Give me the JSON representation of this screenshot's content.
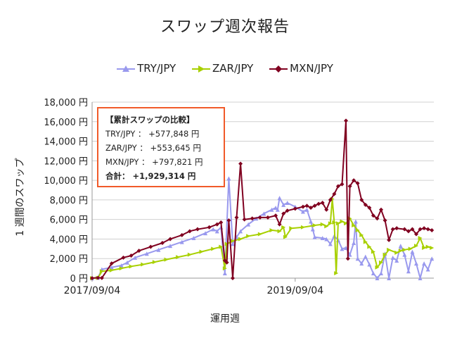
{
  "chart_data": {
    "type": "line",
    "title": "スワップ週次報告",
    "xlabel": "運用週",
    "ylabel": "1 週間のスワップ",
    "ylim": [
      0,
      18000
    ],
    "yticks": [
      "0 円",
      "2,000 円",
      "4,000 円",
      "6,000 円",
      "8,000 円",
      "10,000 円",
      "12,000 円",
      "14,000 円",
      "16,000 円",
      "18,000 円"
    ],
    "xticks": [
      {
        "label": "2017/09/04",
        "week": 0
      },
      {
        "label": "2019/09/04",
        "week": 104
      }
    ],
    "xlim": [
      0,
      175
    ],
    "grid": true,
    "legend_position": "top",
    "series": [
      {
        "name": "TRY/JPY",
        "color": "#9999ee",
        "marker": "triangle",
        "points": [
          [
            0,
            0
          ],
          [
            3,
            50
          ],
          [
            5,
            900
          ],
          [
            10,
            1100
          ],
          [
            15,
            1300
          ],
          [
            18,
            1600
          ],
          [
            22,
            2100
          ],
          [
            28,
            2500
          ],
          [
            34,
            2900
          ],
          [
            40,
            3300
          ],
          [
            46,
            3700
          ],
          [
            52,
            4100
          ],
          [
            58,
            4600
          ],
          [
            62,
            5000
          ],
          [
            64,
            4800
          ],
          [
            66,
            5200
          ],
          [
            68,
            500
          ],
          [
            70,
            10200
          ],
          [
            72,
            3500
          ],
          [
            74,
            4200
          ],
          [
            76,
            4800
          ],
          [
            80,
            5500
          ],
          [
            84,
            6100
          ],
          [
            88,
            6600
          ],
          [
            92,
            7000
          ],
          [
            94,
            7200
          ],
          [
            95,
            7000
          ],
          [
            96,
            8200
          ],
          [
            98,
            7500
          ],
          [
            100,
            7700
          ],
          [
            104,
            7300
          ],
          [
            108,
            6800
          ],
          [
            110,
            7000
          ],
          [
            112,
            5800
          ],
          [
            113,
            5000
          ],
          [
            114,
            4200
          ],
          [
            118,
            4100
          ],
          [
            120,
            4000
          ],
          [
            122,
            3500
          ],
          [
            124,
            4300
          ],
          [
            126,
            3900
          ],
          [
            128,
            3000
          ],
          [
            130,
            3100
          ],
          [
            132,
            2400
          ],
          [
            134,
            3600
          ],
          [
            135,
            5800
          ],
          [
            136,
            2000
          ],
          [
            138,
            1500
          ],
          [
            140,
            2200
          ],
          [
            142,
            1400
          ],
          [
            144,
            500
          ],
          [
            146,
            0
          ],
          [
            148,
            500
          ],
          [
            150,
            2500
          ],
          [
            152,
            0
          ],
          [
            154,
            2100
          ],
          [
            156,
            1800
          ],
          [
            158,
            3300
          ],
          [
            160,
            2400
          ],
          [
            162,
            700
          ],
          [
            164,
            2700
          ],
          [
            166,
            1500
          ],
          [
            168,
            0
          ],
          [
            170,
            1500
          ],
          [
            172,
            900
          ],
          [
            174,
            2000
          ]
        ]
      },
      {
        "name": "ZAR/JPY",
        "color": "#a8d000",
        "marker": "right-triangle",
        "points": [
          [
            0,
            0
          ],
          [
            3,
            30
          ],
          [
            5,
            700
          ],
          [
            10,
            800
          ],
          [
            15,
            1000
          ],
          [
            20,
            1200
          ],
          [
            26,
            1400
          ],
          [
            32,
            1650
          ],
          [
            38,
            1900
          ],
          [
            44,
            2150
          ],
          [
            50,
            2400
          ],
          [
            56,
            2700
          ],
          [
            62,
            3000
          ],
          [
            66,
            3200
          ],
          [
            68,
            1000
          ],
          [
            69,
            3500
          ],
          [
            72,
            3800
          ],
          [
            76,
            4000
          ],
          [
            80,
            4300
          ],
          [
            86,
            4500
          ],
          [
            92,
            4900
          ],
          [
            96,
            4800
          ],
          [
            98,
            5200
          ],
          [
            99,
            4200
          ],
          [
            102,
            5100
          ],
          [
            108,
            5200
          ],
          [
            114,
            5400
          ],
          [
            118,
            5500
          ],
          [
            120,
            5300
          ],
          [
            122,
            5600
          ],
          [
            123,
            8100
          ],
          [
            124,
            5700
          ],
          [
            125,
            500
          ],
          [
            126,
            5600
          ],
          [
            128,
            5800
          ],
          [
            130,
            5600
          ],
          [
            132,
            6100
          ],
          [
            134,
            5400
          ],
          [
            136,
            4900
          ],
          [
            138,
            4400
          ],
          [
            140,
            3700
          ],
          [
            142,
            3200
          ],
          [
            144,
            2700
          ],
          [
            146,
            1100
          ],
          [
            148,
            1600
          ],
          [
            150,
            2400
          ],
          [
            152,
            2900
          ],
          [
            156,
            2600
          ],
          [
            158,
            2800
          ],
          [
            160,
            2900
          ],
          [
            163,
            3000
          ],
          [
            166,
            3300
          ],
          [
            168,
            4100
          ],
          [
            170,
            3100
          ],
          [
            172,
            3200
          ],
          [
            174,
            3100
          ]
        ]
      },
      {
        "name": "MXN/JPY",
        "color": "#800020",
        "marker": "diamond",
        "points": [
          [
            0,
            0
          ],
          [
            3,
            40
          ],
          [
            5,
            20
          ],
          [
            10,
            1500
          ],
          [
            16,
            2100
          ],
          [
            20,
            2300
          ],
          [
            24,
            2800
          ],
          [
            30,
            3200
          ],
          [
            36,
            3600
          ],
          [
            40,
            4000
          ],
          [
            46,
            4400
          ],
          [
            50,
            4800
          ],
          [
            54,
            5000
          ],
          [
            60,
            5200
          ],
          [
            64,
            5500
          ],
          [
            66,
            5700
          ],
          [
            68,
            1800
          ],
          [
            69,
            1600
          ],
          [
            70,
            5900
          ],
          [
            72,
            0
          ],
          [
            74,
            6200
          ],
          [
            76,
            11700
          ],
          [
            78,
            6000
          ],
          [
            82,
            6100
          ],
          [
            86,
            6200
          ],
          [
            90,
            6200
          ],
          [
            94,
            6400
          ],
          [
            96,
            5500
          ],
          [
            98,
            6600
          ],
          [
            100,
            6900
          ],
          [
            104,
            7100
          ],
          [
            108,
            7300
          ],
          [
            110,
            7400
          ],
          [
            112,
            7200
          ],
          [
            114,
            7400
          ],
          [
            116,
            7600
          ],
          [
            118,
            7700
          ],
          [
            120,
            7000
          ],
          [
            122,
            8000
          ],
          [
            124,
            8600
          ],
          [
            126,
            9400
          ],
          [
            128,
            9600
          ],
          [
            130,
            16100
          ],
          [
            131,
            2000
          ],
          [
            132,
            9400
          ],
          [
            134,
            10000
          ],
          [
            136,
            9700
          ],
          [
            138,
            8000
          ],
          [
            140,
            7500
          ],
          [
            142,
            7200
          ],
          [
            144,
            6400
          ],
          [
            146,
            6100
          ],
          [
            148,
            7000
          ],
          [
            150,
            5900
          ],
          [
            152,
            3900
          ],
          [
            154,
            5000
          ],
          [
            156,
            5100
          ],
          [
            160,
            5000
          ],
          [
            162,
            4800
          ],
          [
            164,
            5000
          ],
          [
            166,
            4500
          ],
          [
            168,
            5000
          ],
          [
            170,
            5100
          ],
          [
            172,
            5000
          ],
          [
            174,
            4900
          ]
        ]
      }
    ]
  },
  "summary": {
    "header": "【累計スワップの比較】",
    "try": "TRY/JPY ： +577,848 円",
    "zar": "ZAR/JPY ： +553,645 円",
    "mxn": "MXN/JPY ： +797,821 円",
    "total": "合計： +1,929,314 円"
  }
}
